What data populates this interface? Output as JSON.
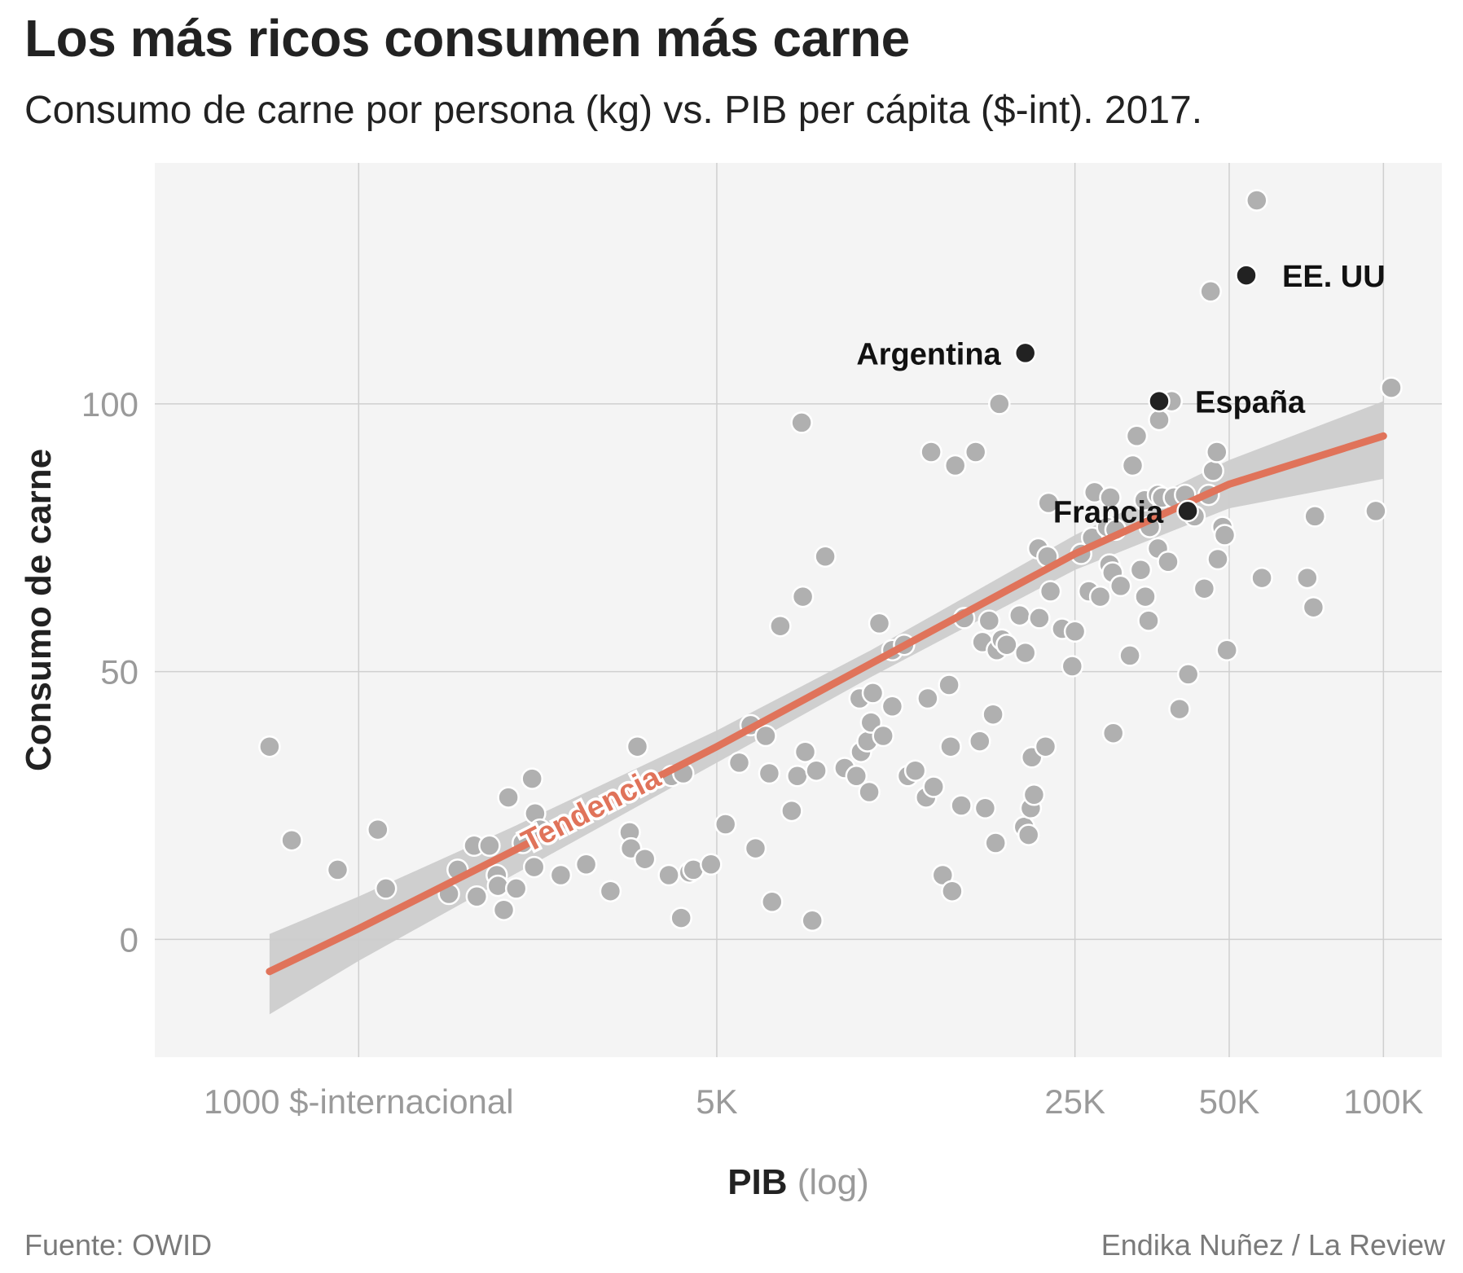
{
  "header": {
    "title": "Los más ricos consumen más carne",
    "subtitle": "Consumo de carne por persona (kg) vs. PIB per cápita ($-int). 2017."
  },
  "footer": {
    "source": "Fuente: OWID",
    "credit": "Endika Nuñez / La Review"
  },
  "chart_data": {
    "type": "scatter",
    "title": "Los más ricos consumen más carne",
    "subtitle": "Consumo de carne por persona (kg) vs. PIB per cápita ($-int). 2017.",
    "x_axis": {
      "label": "PIB",
      "label_note": "(log)",
      "scale": "log",
      "range": [
        400,
        130000
      ],
      "ticks": [
        1000,
        5000,
        25000,
        50000,
        100000
      ],
      "tick_labels": [
        "1000 $-internacional",
        "5K",
        "25K",
        "50K",
        "100K"
      ]
    },
    "y_axis": {
      "label": "Consumo de carne",
      "range": [
        -22,
        145
      ],
      "ticks": [
        0,
        50,
        100
      ],
      "tick_labels": [
        "0",
        "50",
        "100"
      ]
    },
    "grid": true,
    "background": "#f4f4f4",
    "colors": {
      "points": "#b0b0b0",
      "highlight": "#222222",
      "trend": "#e0735a",
      "band": "#cccccc"
    },
    "trend": {
      "label": "Tendencia",
      "x": [
        670,
        1000,
        2000,
        5000,
        10000,
        25000,
        50000,
        100000
      ],
      "y": [
        -6,
        2,
        16.5,
        36,
        51.5,
        72,
        85,
        94
      ],
      "band_low": [
        -14,
        -4,
        12,
        33,
        49,
        69,
        80.5,
        86
      ],
      "band_high": [
        1,
        8,
        21,
        39,
        54,
        75.5,
        89.5,
        100.5
      ]
    },
    "highlighted": [
      {
        "label": "EE. UU",
        "x": 54000,
        "y": 124
      },
      {
        "label": "Argentina",
        "x": 20000,
        "y": 109.5
      },
      {
        "label": "España",
        "x": 36500,
        "y": 100.5
      },
      {
        "label": "Francia",
        "x": 41500,
        "y": 80
      }
    ],
    "points": [
      [
        670,
        36
      ],
      [
        740,
        18.5
      ],
      [
        910,
        13
      ],
      [
        1090,
        20.5
      ],
      [
        1130,
        9.5
      ],
      [
        1500,
        8.5
      ],
      [
        1560,
        13
      ],
      [
        1680,
        17.5
      ],
      [
        1700,
        8
      ],
      [
        1800,
        17.5
      ],
      [
        1860,
        12
      ],
      [
        1870,
        10
      ],
      [
        1920,
        5.5
      ],
      [
        1960,
        26.5
      ],
      [
        2030,
        9.5
      ],
      [
        2090,
        18
      ],
      [
        2180,
        30
      ],
      [
        2200,
        13.5
      ],
      [
        2210,
        23.5
      ],
      [
        2260,
        20.5
      ],
      [
        2480,
        12
      ],
      [
        2780,
        14
      ],
      [
        3100,
        9
      ],
      [
        3380,
        20
      ],
      [
        3400,
        17
      ],
      [
        3500,
        36
      ],
      [
        3620,
        15
      ],
      [
        4030,
        12
      ],
      [
        4080,
        30.5
      ],
      [
        4260,
        4
      ],
      [
        4300,
        31
      ],
      [
        4420,
        12.5
      ],
      [
        4500,
        13
      ],
      [
        4870,
        14
      ],
      [
        5200,
        21.5
      ],
      [
        5530,
        33
      ],
      [
        5820,
        40
      ],
      [
        5950,
        17
      ],
      [
        6230,
        38
      ],
      [
        6330,
        31
      ],
      [
        6410,
        7
      ],
      [
        6650,
        58.5
      ],
      [
        7000,
        24
      ],
      [
        7180,
        30.5
      ],
      [
        7320,
        96.5
      ],
      [
        7360,
        64
      ],
      [
        7440,
        35
      ],
      [
        7680,
        3.5
      ],
      [
        7820,
        31.5
      ],
      [
        8140,
        71.5
      ],
      [
        8880,
        32
      ],
      [
        9360,
        30.5
      ],
      [
        9500,
        45
      ],
      [
        9560,
        35
      ],
      [
        9840,
        37
      ],
      [
        9920,
        27.5
      ],
      [
        10000,
        40.5
      ],
      [
        10080,
        46
      ],
      [
        10380,
        59
      ],
      [
        10560,
        38
      ],
      [
        11000,
        43.5
      ],
      [
        11000,
        54
      ],
      [
        11600,
        55
      ],
      [
        11800,
        30.5
      ],
      [
        12200,
        31.5
      ],
      [
        12800,
        26.5
      ],
      [
        12900,
        45
      ],
      [
        13100,
        91
      ],
      [
        13250,
        28.5
      ],
      [
        13800,
        12
      ],
      [
        14200,
        47.5
      ],
      [
        14300,
        36
      ],
      [
        14400,
        9
      ],
      [
        14600,
        88.5
      ],
      [
        15000,
        25
      ],
      [
        15200,
        60
      ],
      [
        16000,
        91
      ],
      [
        16300,
        37
      ],
      [
        16500,
        55.5
      ],
      [
        16700,
        24.5
      ],
      [
        17000,
        59.5
      ],
      [
        17300,
        42
      ],
      [
        17500,
        18
      ],
      [
        17600,
        54
      ],
      [
        17800,
        100
      ],
      [
        18000,
        56
      ],
      [
        18400,
        55
      ],
      [
        19500,
        60.5
      ],
      [
        19900,
        21
      ],
      [
        20000,
        53.5
      ],
      [
        20300,
        19.5
      ],
      [
        20500,
        24.5
      ],
      [
        20600,
        34
      ],
      [
        20800,
        27
      ],
      [
        21200,
        73
      ],
      [
        21300,
        60
      ],
      [
        21900,
        36
      ],
      [
        22100,
        71.5
      ],
      [
        22200,
        81.5
      ],
      [
        22400,
        65
      ],
      [
        23600,
        58
      ],
      [
        24700,
        51
      ],
      [
        25000,
        57.5
      ],
      [
        25700,
        72
      ],
      [
        26600,
        65
      ],
      [
        27000,
        75
      ],
      [
        27300,
        83.5
      ],
      [
        28000,
        64
      ],
      [
        28900,
        77
      ],
      [
        29200,
        70
      ],
      [
        29300,
        82.5
      ],
      [
        29600,
        68.5
      ],
      [
        29700,
        38.5
      ],
      [
        30000,
        76.5
      ],
      [
        30700,
        66
      ],
      [
        32000,
        53
      ],
      [
        32400,
        88.5
      ],
      [
        33000,
        94
      ],
      [
        33600,
        69
      ],
      [
        34200,
        82
      ],
      [
        34300,
        64
      ],
      [
        34800,
        59.5
      ],
      [
        35000,
        77
      ],
      [
        36300,
        73
      ],
      [
        36300,
        83
      ],
      [
        36500,
        97
      ],
      [
        37000,
        82.5
      ],
      [
        38000,
        70.5
      ],
      [
        38600,
        100.5
      ],
      [
        39000,
        82.5
      ],
      [
        40000,
        43
      ],
      [
        41000,
        83
      ],
      [
        41600,
        49.5
      ],
      [
        42800,
        79
      ],
      [
        44700,
        65.5
      ],
      [
        45600,
        83
      ],
      [
        46000,
        121
      ],
      [
        46500,
        87.5
      ],
      [
        47300,
        91
      ],
      [
        47500,
        71
      ],
      [
        48500,
        77
      ],
      [
        49000,
        75.5
      ],
      [
        49500,
        54
      ],
      [
        56600,
        138
      ],
      [
        57900,
        67.5
      ],
      [
        71000,
        67.5
      ],
      [
        73000,
        62
      ],
      [
        73500,
        79
      ],
      [
        96600,
        80
      ],
      [
        103600,
        103
      ]
    ]
  }
}
